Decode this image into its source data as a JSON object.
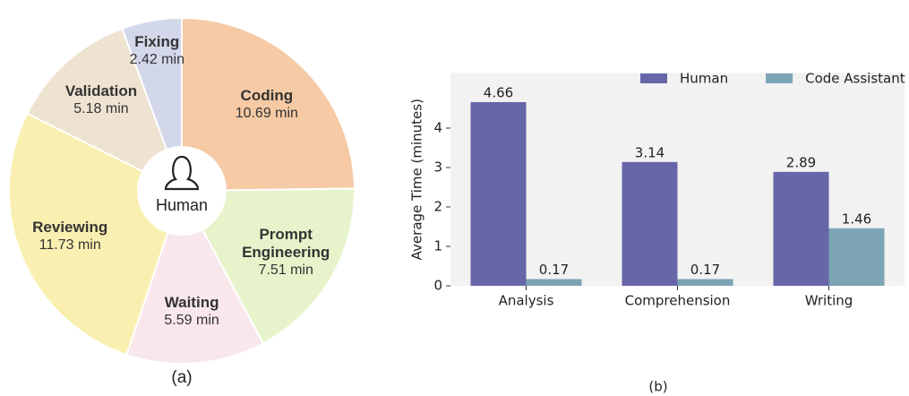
{
  "chart_data": [
    {
      "type": "pie",
      "categories": [
        "Coding",
        "Prompt Engineering",
        "Waiting",
        "Reviewing",
        "Validation",
        "Fixing"
      ],
      "values": [
        10.69,
        7.51,
        5.59,
        11.73,
        5.18,
        2.42
      ],
      "value_labels": [
        "10.69 min",
        "7.51 min",
        "5.59 min",
        "11.73 min",
        "5.18 min",
        "2.42 min"
      ],
      "colors": [
        "#f5caa4",
        "#e7f4cb",
        "#f8e7eb",
        "#f9efb0",
        "#eee2d0",
        "#d3d7ea"
      ],
      "center_label": "Human",
      "caption": "(a)"
    },
    {
      "type": "bar",
      "categories": [
        "Analysis",
        "Comprehension",
        "Writing"
      ],
      "series": [
        {
          "name": "Human",
          "color": "#6766a9",
          "values": [
            4.66,
            3.14,
            2.89
          ]
        },
        {
          "name": "Code Assistant",
          "color": "#7ca4b4",
          "values": [
            0.17,
            0.17,
            1.46
          ]
        }
      ],
      "ylabel": "Average Time (minutes)",
      "ylim": [
        0,
        5.4
      ],
      "yticks": [
        0,
        1,
        2,
        3,
        4
      ],
      "legend": "upper right",
      "caption": "(b)"
    }
  ]
}
